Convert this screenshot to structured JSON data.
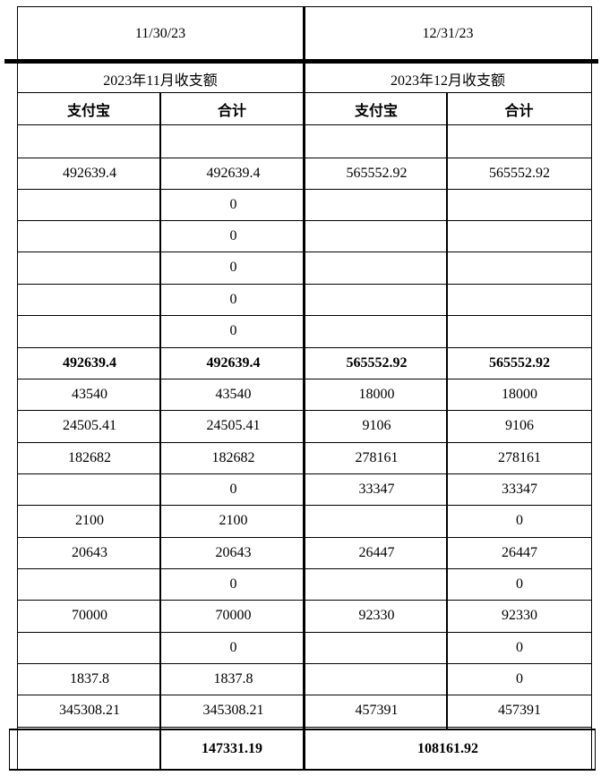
{
  "dates": [
    "11/30/23",
    "12/31/23"
  ],
  "period_titles": [
    "2023年11月收支额",
    "2023年12月收支额"
  ],
  "column_headers": [
    "支付宝",
    "合计",
    "支付宝",
    "合计"
  ],
  "rows": [
    [
      "",
      "",
      "",
      ""
    ],
    [
      "492639.4",
      "492639.4",
      "565552.92",
      "565552.92"
    ],
    [
      "",
      "0",
      "",
      ""
    ],
    [
      "",
      "0",
      "",
      ""
    ],
    [
      "",
      "0",
      "",
      ""
    ],
    [
      "",
      "0",
      "",
      ""
    ],
    [
      "",
      "0",
      "",
      ""
    ],
    [
      "492639.4",
      "492639.4",
      "565552.92",
      "565552.92"
    ],
    [
      "43540",
      "43540",
      "18000",
      "18000"
    ],
    [
      "24505.41",
      "24505.41",
      "9106",
      "9106"
    ],
    [
      "182682",
      "182682",
      "278161",
      "278161"
    ],
    [
      "",
      "0",
      "33347",
      "33347"
    ],
    [
      "2100",
      "2100",
      "",
      "0"
    ],
    [
      "20643",
      "20643",
      "26447",
      "26447"
    ],
    [
      "",
      "0",
      "",
      "0"
    ],
    [
      "70000",
      "70000",
      "92330",
      "92330"
    ],
    [
      "",
      "0",
      "",
      "0"
    ],
    [
      "1837.8",
      "1837.8",
      "",
      "0"
    ],
    [
      "345308.21",
      "345308.21",
      "457391",
      "457391"
    ]
  ],
  "totals": [
    "147331.19",
    "108161.92"
  ]
}
